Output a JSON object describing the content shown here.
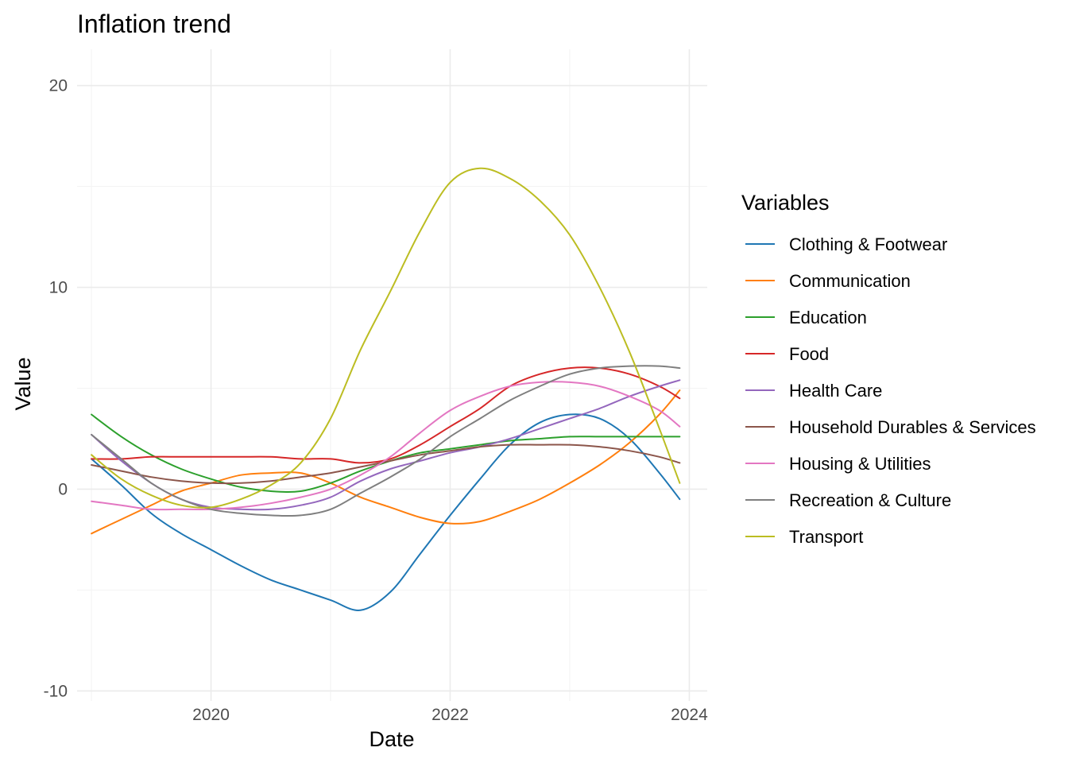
{
  "chart_data": {
    "type": "line",
    "title": "Inflation trend",
    "xlabel": "Date",
    "ylabel": "Value",
    "x_ticks": [
      2020,
      2022,
      2024
    ],
    "y_ticks": [
      -10,
      0,
      10,
      20
    ],
    "xlim": [
      2018.88,
      2024.15
    ],
    "ylim": [
      -10.5,
      21.8
    ],
    "grid": true,
    "legend": {
      "title": "Variables",
      "position": "right"
    },
    "x": [
      2019.0,
      2019.25,
      2019.5,
      2019.75,
      2020.0,
      2020.25,
      2020.5,
      2020.75,
      2021.0,
      2021.25,
      2021.5,
      2021.75,
      2022.0,
      2022.25,
      2022.5,
      2022.75,
      2023.0,
      2023.25,
      2023.5,
      2023.75,
      2023.92
    ],
    "series": [
      {
        "name": "Clothing & Footwear",
        "color": "#1f77b4",
        "values": [
          1.5,
          0.2,
          -1.2,
          -2.2,
          -3.0,
          -3.8,
          -4.5,
          -5.0,
          -5.5,
          -6.0,
          -5.1,
          -3.2,
          -1.3,
          0.5,
          2.2,
          3.3,
          3.7,
          3.5,
          2.5,
          0.8,
          -0.5
        ]
      },
      {
        "name": "Communication",
        "color": "#ff7f0e",
        "values": [
          -2.2,
          -1.5,
          -0.8,
          -0.1,
          0.3,
          0.7,
          0.8,
          0.8,
          0.3,
          -0.4,
          -0.9,
          -1.4,
          -1.7,
          -1.6,
          -1.1,
          -0.5,
          0.3,
          1.2,
          2.3,
          3.7,
          4.9
        ]
      },
      {
        "name": "Education",
        "color": "#2ca02c",
        "values": [
          3.7,
          2.6,
          1.7,
          1.0,
          0.5,
          0.1,
          -0.1,
          -0.1,
          0.3,
          0.9,
          1.4,
          1.8,
          2.0,
          2.2,
          2.4,
          2.5,
          2.6,
          2.6,
          2.6,
          2.6,
          2.6
        ]
      },
      {
        "name": "Food",
        "color": "#d62728",
        "values": [
          1.5,
          1.5,
          1.6,
          1.6,
          1.6,
          1.6,
          1.6,
          1.5,
          1.5,
          1.3,
          1.5,
          2.2,
          3.1,
          4.0,
          5.1,
          5.7,
          6.0,
          6.0,
          5.7,
          5.1,
          4.5
        ]
      },
      {
        "name": "Health Care",
        "color": "#9467bd",
        "values": [
          2.7,
          1.4,
          0.3,
          -0.5,
          -0.9,
          -1.0,
          -1.0,
          -0.8,
          -0.4,
          0.4,
          1.0,
          1.4,
          1.8,
          2.1,
          2.5,
          3.0,
          3.5,
          4.0,
          4.6,
          5.1,
          5.4
        ]
      },
      {
        "name": "Household Durables & Services",
        "color": "#8c564b",
        "values": [
          1.2,
          0.9,
          0.6,
          0.4,
          0.3,
          0.3,
          0.4,
          0.6,
          0.8,
          1.1,
          1.4,
          1.7,
          1.9,
          2.1,
          2.2,
          2.2,
          2.2,
          2.1,
          1.9,
          1.6,
          1.3
        ]
      },
      {
        "name": "Housing & Utilities",
        "color": "#e377c2",
        "values": [
          -0.6,
          -0.8,
          -1.0,
          -1.0,
          -1.0,
          -0.9,
          -0.7,
          -0.4,
          0.0,
          0.7,
          1.6,
          2.8,
          3.9,
          4.6,
          5.1,
          5.3,
          5.3,
          5.1,
          4.6,
          3.9,
          3.1
        ]
      },
      {
        "name": "Recreation & Culture",
        "color": "#7f7f7f",
        "values": [
          2.7,
          1.5,
          0.3,
          -0.5,
          -1.0,
          -1.2,
          -1.3,
          -1.3,
          -1.0,
          -0.2,
          0.6,
          1.5,
          2.6,
          3.5,
          4.4,
          5.1,
          5.7,
          6.0,
          6.1,
          6.1,
          6.0
        ]
      },
      {
        "name": "Transport",
        "color": "#bcbd22",
        "values": [
          1.7,
          0.5,
          -0.3,
          -0.8,
          -0.9,
          -0.5,
          0.2,
          1.3,
          3.5,
          6.9,
          9.8,
          12.8,
          15.2,
          15.9,
          15.4,
          14.3,
          12.6,
          10.0,
          6.8,
          3.0,
          0.3
        ]
      }
    ]
  }
}
